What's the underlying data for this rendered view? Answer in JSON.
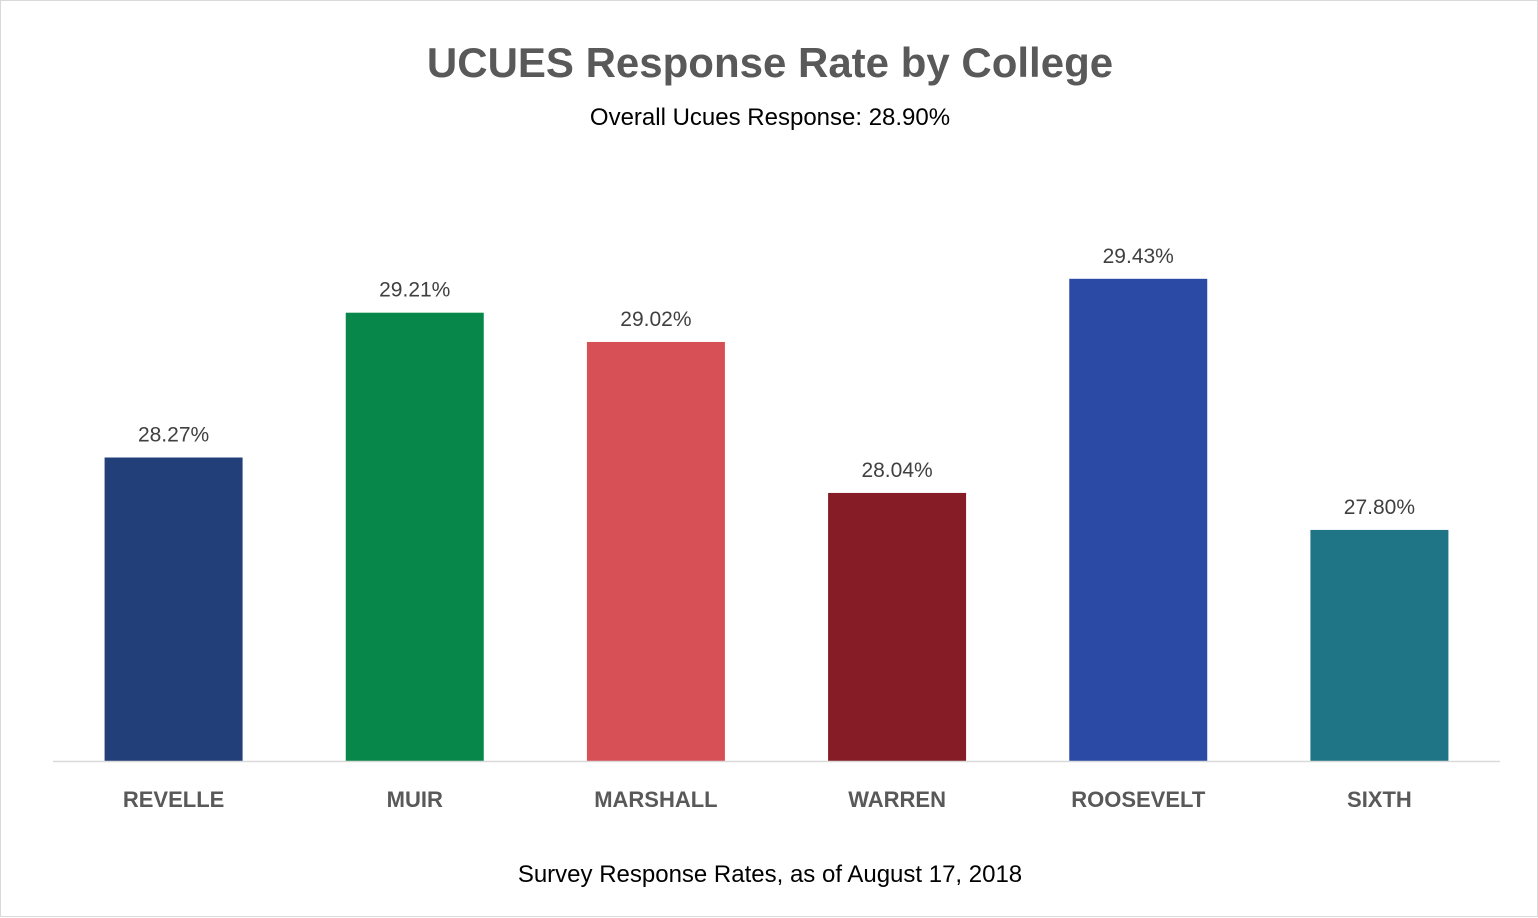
{
  "chart_data": {
    "type": "bar",
    "title": "UCUES Response Rate by College",
    "subtitle": "Overall Ucues Response: 28.90%",
    "xlabel": "Survey Response Rates, as of August 17, 2018",
    "ylabel": "",
    "categories": [
      "REVELLE",
      "MUIR",
      "MARSHALL",
      "WARREN",
      "ROOSEVELT",
      "SIXTH"
    ],
    "values": [
      28.27,
      29.21,
      29.02,
      28.04,
      29.43,
      27.8
    ],
    "value_labels": [
      "28.27%",
      "29.21%",
      "29.02%",
      "28.04%",
      "29.43%",
      "27.80%"
    ],
    "colors": [
      "#223F7A",
      "#08874A",
      "#D75055",
      "#861C26",
      "#2B4AA6",
      "#1F7585"
    ],
    "ylim": [
      26.3,
      30.0
    ],
    "grid": false,
    "legend": "none"
  }
}
